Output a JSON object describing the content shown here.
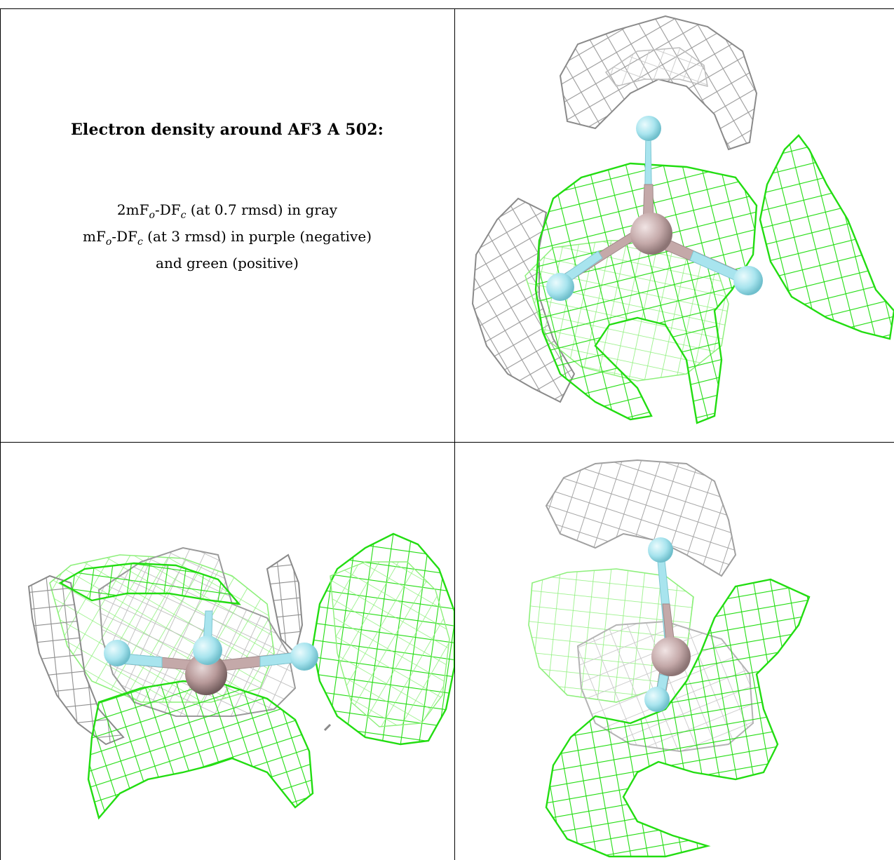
{
  "caption": {
    "title": "Electron density around AF3 A 502:",
    "line1": {
      "a": "2mF",
      "a_sub": "o",
      "b": "-DF",
      "b_sub": "c",
      "c": " (at 0.7 rmsd) in gray"
    },
    "line2": {
      "a": "mF",
      "a_sub": "o",
      "b": "-DF",
      "b_sub": "c",
      "c": " (at 3 rmsd) in purple (negative)"
    },
    "line3": "and green (positive)"
  },
  "colors": {
    "green_mesh": "#22dd11",
    "gray_mesh": "#9a9a9a",
    "fluorine": "#a8e4ee",
    "aluminium": "#c4a9a9"
  },
  "panels": [
    {
      "id": "top-right",
      "view": "front"
    },
    {
      "id": "bottom-left",
      "view": "side"
    },
    {
      "id": "bottom-right",
      "view": "top"
    }
  ]
}
